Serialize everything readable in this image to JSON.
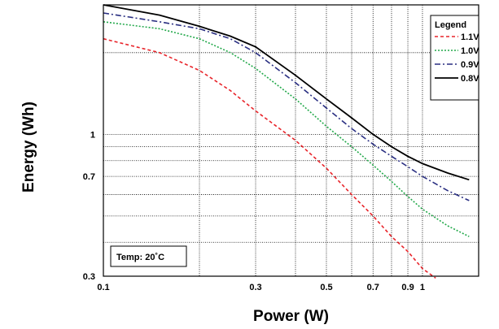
{
  "chart_data": {
    "type": "line",
    "title": "",
    "xlabel": "Power (W)",
    "ylabel": "Energy (Wh)",
    "xscale": "log",
    "yscale": "log",
    "xlim": [
      0.1,
      1.5
    ],
    "ylim": [
      0.3,
      3.0
    ],
    "grid": true,
    "x_ticks": [
      {
        "value": 0.1,
        "label": "0.1"
      },
      {
        "value": 0.3,
        "label": "0.3"
      },
      {
        "value": 0.5,
        "label": "0.5"
      },
      {
        "value": 0.7,
        "label": "0.7"
      },
      {
        "value": 0.9,
        "label": "0.9"
      },
      {
        "value": 1.0,
        "label": "1"
      }
    ],
    "x_grid": [
      0.2,
      0.3,
      0.4,
      0.5,
      0.6,
      0.7,
      0.8,
      0.9,
      1.0
    ],
    "y_ticks": [
      {
        "value": 0.3,
        "label": "0.3"
      },
      {
        "value": 0.7,
        "label": "0.7"
      },
      {
        "value": 1.0,
        "label": "1"
      }
    ],
    "y_grid": [
      0.4,
      0.5,
      0.6,
      0.7,
      0.8,
      0.9,
      1.0,
      2.0
    ],
    "legend": {
      "title": "Legend",
      "position": "top-right"
    },
    "annotation": "Temp:  20˚C",
    "series": [
      {
        "name": "1.1V",
        "color": "#e8242a",
        "dash": "4,3",
        "x": [
          0.1,
          0.15,
          0.2,
          0.25,
          0.3,
          0.4,
          0.5,
          0.6,
          0.7,
          0.8,
          0.9,
          1.0,
          1.1
        ],
        "y": [
          2.25,
          2.0,
          1.72,
          1.45,
          1.22,
          0.95,
          0.75,
          0.6,
          0.5,
          0.42,
          0.37,
          0.32,
          0.295
        ]
      },
      {
        "name": "1.0V",
        "color": "#22a84a",
        "dash": "2,2",
        "x": [
          0.1,
          0.15,
          0.2,
          0.25,
          0.3,
          0.4,
          0.5,
          0.6,
          0.7,
          0.8,
          0.9,
          1.0,
          1.2,
          1.4
        ],
        "y": [
          2.6,
          2.45,
          2.25,
          2.0,
          1.75,
          1.35,
          1.07,
          0.9,
          0.77,
          0.67,
          0.59,
          0.53,
          0.46,
          0.42
        ]
      },
      {
        "name": "0.9V",
        "color": "#2a2f82",
        "dash": "7,3,2,3",
        "x": [
          0.1,
          0.15,
          0.2,
          0.25,
          0.3,
          0.4,
          0.5,
          0.6,
          0.7,
          0.8,
          0.9,
          1.0,
          1.2,
          1.4
        ],
        "y": [
          2.8,
          2.6,
          2.45,
          2.25,
          2.0,
          1.55,
          1.25,
          1.05,
          0.92,
          0.83,
          0.76,
          0.7,
          0.62,
          0.57
        ]
      },
      {
        "name": "0.8V",
        "color": "#000000",
        "dash": "",
        "x": [
          0.1,
          0.15,
          0.2,
          0.25,
          0.3,
          0.4,
          0.5,
          0.6,
          0.7,
          0.8,
          0.9,
          1.0,
          1.2,
          1.4
        ],
        "y": [
          3.0,
          2.75,
          2.5,
          2.3,
          2.1,
          1.65,
          1.35,
          1.15,
          1.0,
          0.9,
          0.83,
          0.78,
          0.72,
          0.68
        ]
      }
    ]
  }
}
